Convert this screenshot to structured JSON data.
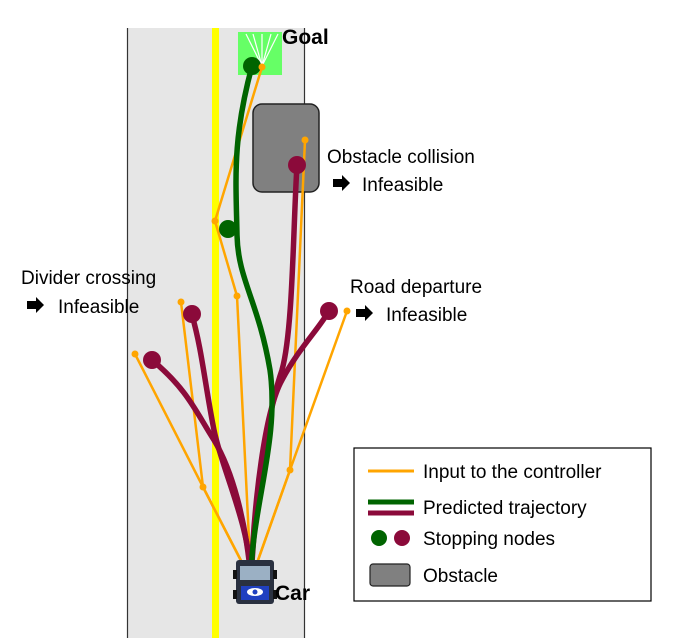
{
  "labels": {
    "goal": "Goal",
    "car": "Car",
    "obstacle_collision": "Obstacle collision",
    "obstacle_collision_result": "Infeasible",
    "divider_crossing": "Divider crossing",
    "divider_crossing_result": "Infeasible",
    "road_departure": "Road departure",
    "road_departure_result": "Infeasible"
  },
  "legend": {
    "items": [
      {
        "label": "Input to the controller",
        "icon": "orange-line"
      },
      {
        "label": "Predicted trajectory",
        "icon": "green-and-red-lines"
      },
      {
        "label": "Stopping nodes",
        "icon": "green-and-red-dots"
      },
      {
        "label": "Obstacle",
        "icon": "gray-rounded-box"
      }
    ]
  },
  "colors": {
    "road": "#e6e6e6",
    "road_border": "#333333",
    "divider": "#ffff00",
    "goal_zone": "#66ff66",
    "obstacle": "#808080",
    "controller_input": "#ffa500",
    "feasible_trajectory": "#006400",
    "infeasible_trajectory": "#8b0a3a"
  }
}
